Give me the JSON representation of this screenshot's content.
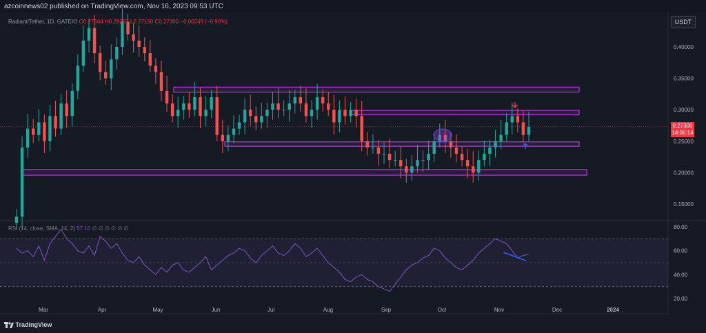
{
  "header": {
    "publish_text": "azcoinnews02 published on TradingView.com, Nov 16, 2023 09:53 UTC"
  },
  "legend": {
    "symbol": "Radiant/Tether, 1D, GATEIO",
    "open": "O0.27564",
    "high": "H0.28287",
    "low": "L0.27150",
    "close": "C0.27300",
    "change": "−0.00249 (−0.90%)"
  },
  "rsi_legend": {
    "label": "RSI (14, close, SMA, 14, 2)",
    "value": "57.10",
    "placeholders": "∅ ∅ ∅ ∅ ∅ ∅"
  },
  "currency_button": "USDT",
  "last_price": {
    "price": "0.27300",
    "countdown": "14:06:14"
  },
  "footer": {
    "brand": "TradingView"
  },
  "colors": {
    "up": "#26a69a",
    "down": "#ef5350",
    "zone": "#b23cd6",
    "rsi_line": "#7e57c2",
    "price_line": "#f23645",
    "divergence": "#2962ff",
    "arrow_down": "#f23645",
    "arrow_up": "#2962ff"
  },
  "chart_data": [
    {
      "type": "candlestick",
      "title": "Radiant/Tether, 1D, GATEIO",
      "x_ticks": [
        "Mar",
        "Apr",
        "May",
        "Jun",
        "Jul",
        "Aug",
        "Sep",
        "Oct",
        "Nov",
        "Dec",
        "2024"
      ],
      "y_ticks": [
        "0.15000",
        "0.20000",
        "0.25000",
        "0.30000",
        "0.35000",
        "0.40000"
      ],
      "ylim": [
        0.12,
        0.46
      ],
      "series": [
        {
          "name": "close",
          "x": [
            "02-15",
            "02-18",
            "02-21",
            "02-24",
            "02-27",
            "03-02",
            "03-05",
            "03-08",
            "03-11",
            "03-14",
            "03-17",
            "03-20",
            "03-23",
            "03-26",
            "03-29",
            "04-01",
            "04-04",
            "04-07",
            "04-10",
            "04-13",
            "04-16",
            "04-19",
            "04-22",
            "04-25",
            "04-28",
            "05-01",
            "05-04",
            "05-07",
            "05-10",
            "05-13",
            "05-16",
            "05-19",
            "05-22",
            "05-25",
            "05-28",
            "05-31",
            "06-03",
            "06-06",
            "06-09",
            "06-12",
            "06-15",
            "06-18",
            "06-21",
            "06-24",
            "06-27",
            "06-30",
            "07-03",
            "07-06",
            "07-09",
            "07-12",
            "07-15",
            "07-18",
            "07-21",
            "07-24",
            "07-27",
            "07-30",
            "08-02",
            "08-05",
            "08-08",
            "08-11",
            "08-14",
            "08-17",
            "08-20",
            "08-23",
            "08-26",
            "08-29",
            "09-01",
            "09-04",
            "09-07",
            "09-10",
            "09-13",
            "09-16",
            "09-19",
            "09-22",
            "09-25",
            "09-28",
            "10-01",
            "10-04",
            "10-07",
            "10-10",
            "10-13",
            "10-16",
            "10-19",
            "10-22",
            "10-25",
            "10-28",
            "10-31",
            "11-03",
            "11-06",
            "11-09",
            "11-12",
            "11-15",
            "11-16"
          ],
          "values": [
            0.13,
            0.24,
            0.27,
            0.26,
            0.28,
            0.25,
            0.29,
            0.27,
            0.31,
            0.29,
            0.33,
            0.37,
            0.41,
            0.43,
            0.39,
            0.36,
            0.35,
            0.38,
            0.4,
            0.44,
            0.42,
            0.41,
            0.4,
            0.39,
            0.37,
            0.36,
            0.33,
            0.31,
            0.29,
            0.3,
            0.31,
            0.3,
            0.32,
            0.29,
            0.3,
            0.32,
            0.26,
            0.25,
            0.26,
            0.27,
            0.28,
            0.3,
            0.29,
            0.28,
            0.29,
            0.3,
            0.31,
            0.3,
            0.3,
            0.31,
            0.32,
            0.31,
            0.29,
            0.3,
            0.32,
            0.31,
            0.3,
            0.28,
            0.3,
            0.29,
            0.3,
            0.29,
            0.25,
            0.24,
            0.24,
            0.23,
            0.23,
            0.22,
            0.22,
            0.21,
            0.2,
            0.21,
            0.22,
            0.22,
            0.23,
            0.25,
            0.26,
            0.25,
            0.24,
            0.23,
            0.22,
            0.21,
            0.2,
            0.22,
            0.23,
            0.24,
            0.25,
            0.26,
            0.28,
            0.29,
            0.28,
            0.26,
            0.273
          ]
        }
      ],
      "zones": [
        {
          "low": 0.328,
          "high": 0.336
        },
        {
          "low": 0.292,
          "high": 0.299
        },
        {
          "low": 0.242,
          "high": 0.249
        },
        {
          "low": 0.196,
          "high": 0.205
        }
      ],
      "last_price": 0.273
    },
    {
      "type": "line",
      "title": "RSI (14, close, SMA, 14, 2)",
      "y_ticks": [
        "20.00",
        "40.00",
        "60.00",
        "80.00"
      ],
      "ylim": [
        15,
        85
      ],
      "bands": [
        30,
        50,
        70
      ],
      "series": [
        {
          "name": "RSI",
          "values": [
            62,
            58,
            60,
            55,
            64,
            52,
            66,
            72,
            78,
            70,
            66,
            60,
            58,
            64,
            56,
            72,
            68,
            62,
            66,
            58,
            52,
            50,
            55,
            48,
            44,
            40,
            46,
            42,
            48,
            50,
            44,
            42,
            46,
            50,
            55,
            44,
            48,
            52,
            56,
            58,
            62,
            60,
            54,
            50,
            56,
            60,
            64,
            58,
            56,
            60,
            66,
            62,
            55,
            58,
            62,
            56,
            50,
            46,
            42,
            36,
            34,
            38,
            40,
            36,
            34,
            30,
            28,
            26,
            32,
            38,
            44,
            48,
            50,
            54,
            56,
            62,
            60,
            54,
            50,
            46,
            44,
            48,
            52,
            58,
            62,
            66,
            70,
            68,
            66,
            60,
            54,
            56,
            57.1
          ]
        }
      ],
      "last_value": 57.1
    }
  ]
}
